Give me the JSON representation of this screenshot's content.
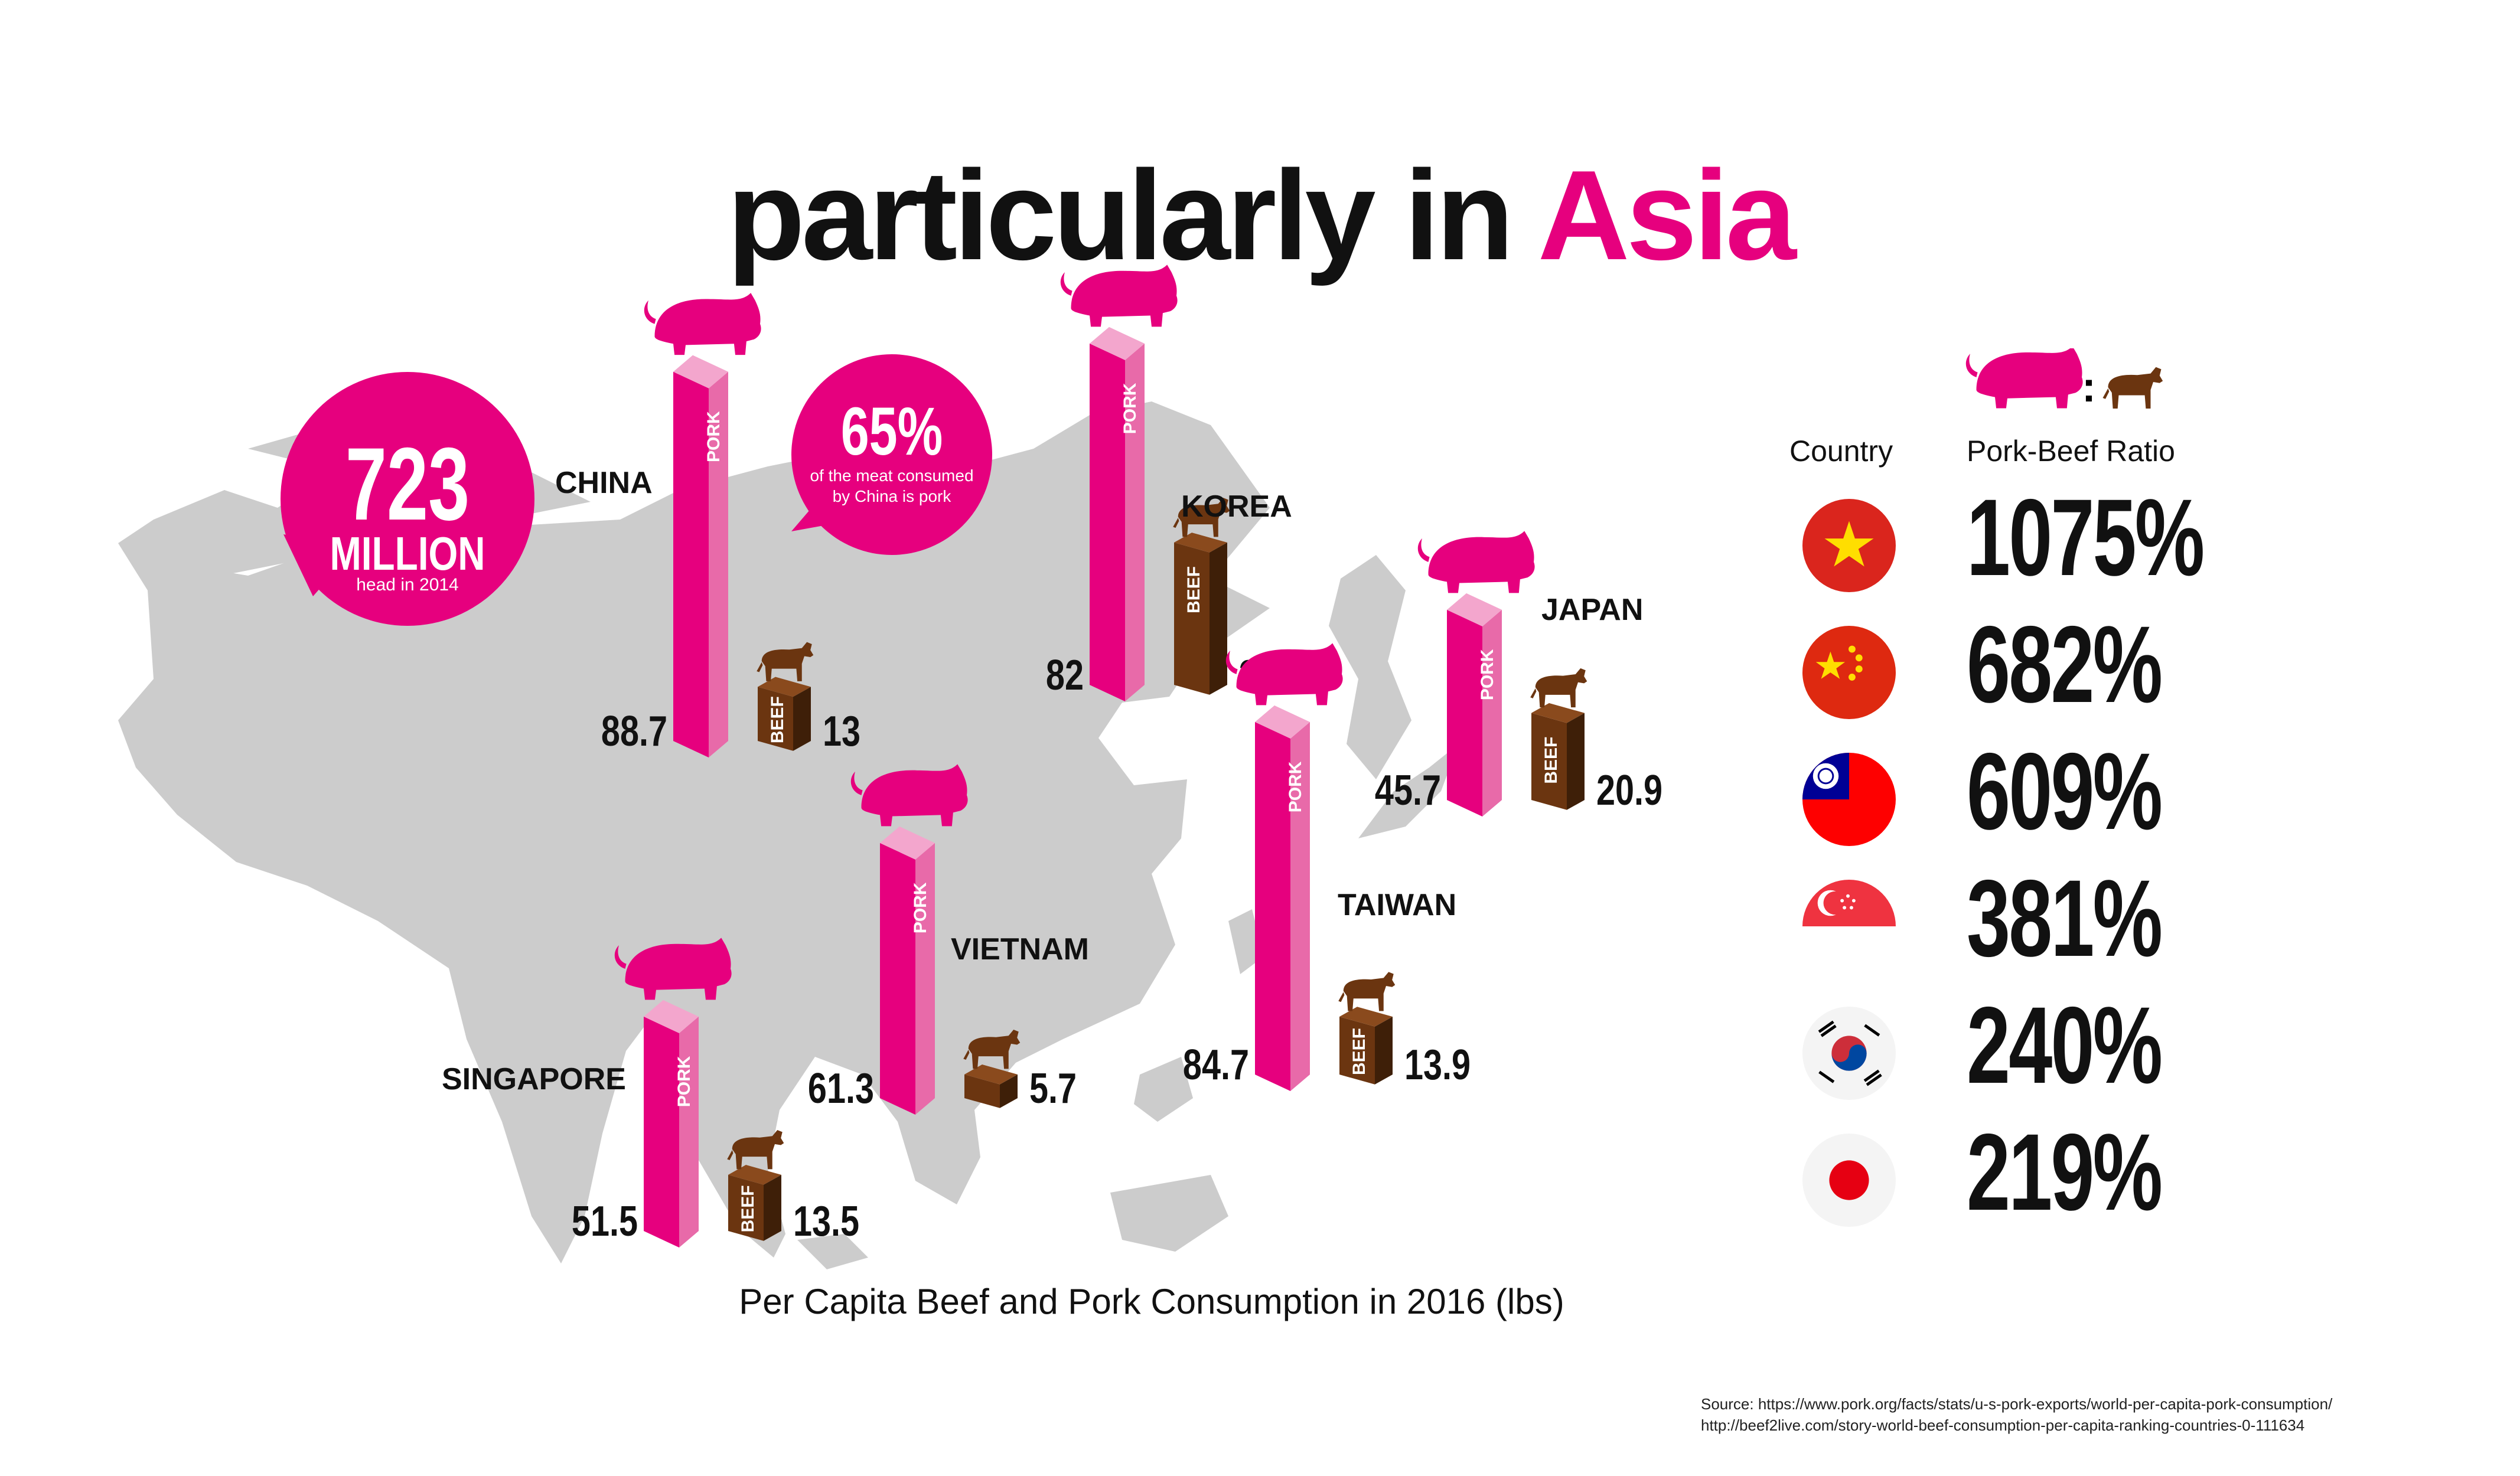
{
  "title": {
    "prefix": "particularly in ",
    "highlight": "Asia"
  },
  "colors": {
    "pork": "#e6007e",
    "pork_side": "#e86aa9",
    "beef": "#6b3510",
    "beef_side": "#3e1f08",
    "map": "#cccccc"
  },
  "bubbles": {
    "herd": {
      "big": "723",
      "mid": "MILLION",
      "small": "head in 2014"
    },
    "share": {
      "big": "65%",
      "line1": "of the meat consumed",
      "line2": "by China is pork"
    }
  },
  "labels": {
    "pork": "PORK",
    "beef": "BEEF"
  },
  "chart_data": {
    "type": "bar",
    "title": "Per Capita Beef and Pork Consumption in 2016 (lbs)",
    "categories": [
      "CHINA",
      "KOREA",
      "JAPAN",
      "TAIWAN",
      "VIETNAM",
      "SINGAPORE"
    ],
    "series": [
      {
        "name": "PORK",
        "values": [
          88.7,
          82,
          45.7,
          84.7,
          61.3,
          51.5
        ]
      },
      {
        "name": "BEEF",
        "values": [
          13,
          34.2,
          20.9,
          13.9,
          5.7,
          13.5
        ]
      }
    ]
  },
  "ratio_table": {
    "header_country": "Country",
    "header_ratio": "Pork-Beef Ratio",
    "separator": ":",
    "rows": [
      {
        "flag": "vietnam-flag",
        "ratio": "1075%"
      },
      {
        "flag": "china-flag",
        "ratio": "682%"
      },
      {
        "flag": "taiwan-flag",
        "ratio": "609%"
      },
      {
        "flag": "singapore-flag",
        "ratio": "381%"
      },
      {
        "flag": "korea-flag",
        "ratio": "240%"
      },
      {
        "flag": "japan-flag",
        "ratio": "219%"
      }
    ]
  },
  "source": {
    "line1": "Source: https://www.pork.org/facts/stats/u-s-pork-exports/world-per-capita-pork-consumption/",
    "line2": "http://beef2live.com/story-world-beef-consumption-per-capita-ranking-countries-0-111634"
  }
}
